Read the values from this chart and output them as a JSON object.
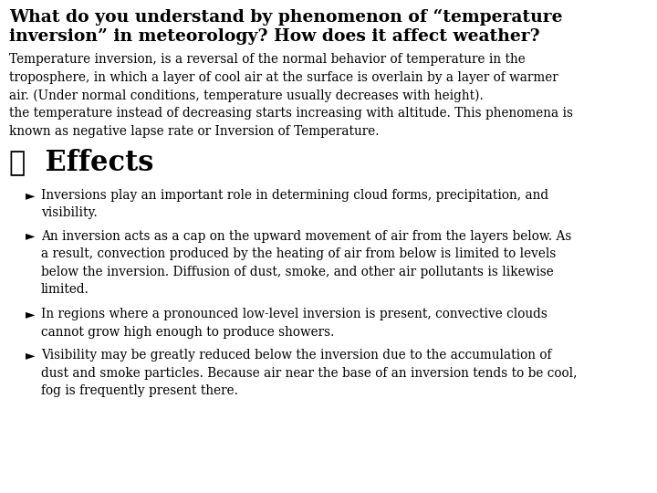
{
  "background_color": "#ffffff",
  "title_text": "What do you understand by phenomenon of “temperature\ninversion” in meteorology? How does it affect weather?",
  "title_fontsize": 13.5,
  "title_fontweight": "bold",
  "body_text": "Temperature inversion, is a reversal of the normal behavior of temperature in the\ntroposphere, in which a layer of cool air at the surface is overlain by a layer of warmer\nair. (Under normal conditions, temperature usually decreases with height).\nthe temperature instead of decreasing starts increasing with altitude. This phenomena is\nknown as negative lapse rate or Inversion of Temperature.",
  "body_fontsize": 9.8,
  "section_title": "❖  Effects",
  "section_title_fontsize": 22,
  "section_title_fontweight": "bold",
  "bullet_points": [
    "Inversions play an important role in determining cloud forms, precipitation, and\nvisibility.",
    "An inversion acts as a cap on the upward movement of air from the layers below. As\na result, convection produced by the heating of air from below is limited to levels\nbelow the inversion. Diffusion of dust, smoke, and other air pollutants is likewise\nlimited.",
    "In regions where a pronounced low-level inversion is present, convective clouds\ncannot grow high enough to produce showers.",
    "Visibility may be greatly reduced below the inversion due to the accumulation of\ndust and smoke particles. Because air near the base of an inversion tends to be cool,\nfog is frequently present there."
  ],
  "bullet_fontsize": 9.8,
  "text_color": "#000000",
  "font_family": "DejaVu Serif",
  "fig_width": 7.2,
  "fig_height": 5.4,
  "dpi": 100
}
